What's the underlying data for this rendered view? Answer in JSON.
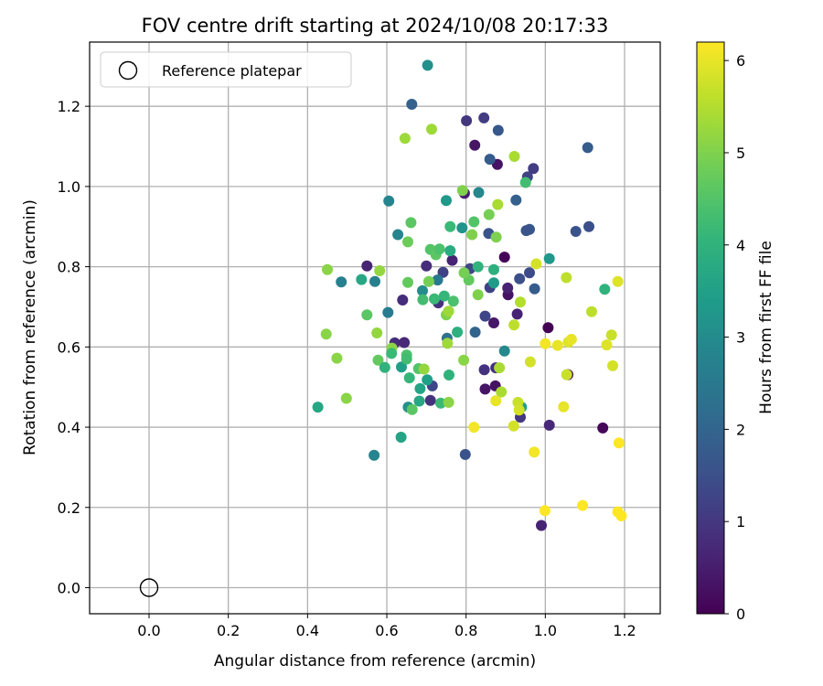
{
  "chart_data": {
    "type": "scatter",
    "title": "FOV centre drift starting at 2024/10/08 20:17:33",
    "xlabel": "Angular distance from reference (arcmin)",
    "ylabel": "Rotation from reference (arcmin)",
    "xlim": [
      -0.15,
      1.29
    ],
    "ylim": [
      -0.065,
      1.36
    ],
    "xticks": [
      0.0,
      0.2,
      0.4,
      0.6,
      0.8,
      1.0,
      1.2
    ],
    "xtick_labels": [
      "0.0",
      "0.2",
      "0.4",
      "0.6",
      "0.8",
      "1.0",
      "1.2"
    ],
    "yticks": [
      0.0,
      0.2,
      0.4,
      0.6,
      0.8,
      1.0,
      1.2
    ],
    "ytick_labels": [
      "0.0",
      "0.2",
      "0.4",
      "0.6",
      "0.8",
      "1.0",
      "1.2"
    ],
    "grid": true,
    "legend": {
      "placement": "upper-left",
      "label": "Reference platepar"
    },
    "reference_point": {
      "x": 0.0,
      "y": 0.0
    },
    "colorbar": {
      "label": "Hours from first FF file",
      "colormap": "viridis",
      "range": [
        0,
        6.2
      ],
      "ticks": [
        0,
        1,
        2,
        3,
        4,
        5,
        6
      ],
      "tick_labels": [
        "0",
        "1",
        "2",
        "3",
        "4",
        "5",
        "6"
      ]
    },
    "points": [
      [
        1.007,
        0.648,
        0.0
      ],
      [
        0.897,
        0.824,
        0.05
      ],
      [
        1.145,
        0.398,
        0.1
      ],
      [
        1.057,
        0.531,
        0.05
      ],
      [
        0.879,
        1.055,
        0.3
      ],
      [
        0.822,
        1.103,
        0.35
      ],
      [
        0.906,
        0.73,
        0.3
      ],
      [
        0.87,
        0.66,
        0.4
      ],
      [
        0.874,
        0.503,
        0.3
      ],
      [
        0.848,
        0.495,
        0.35
      ],
      [
        0.99,
        0.155,
        0.6
      ],
      [
        1.01,
        0.405,
        0.7
      ],
      [
        0.929,
        0.682,
        0.6
      ],
      [
        0.796,
        0.983,
        0.5
      ],
      [
        0.765,
        0.816,
        0.6
      ],
      [
        0.905,
        0.747,
        0.6
      ],
      [
        0.62,
        0.61,
        0.8
      ],
      [
        0.644,
        0.611,
        0.7
      ],
      [
        0.55,
        0.802,
        0.6
      ],
      [
        0.64,
        0.717,
        0.8
      ],
      [
        0.73,
        0.71,
        0.9
      ],
      [
        0.7,
        0.802,
        0.8
      ],
      [
        0.71,
        0.467,
        0.9
      ],
      [
        0.846,
        0.543,
        0.9
      ],
      [
        0.875,
        0.548,
        0.8
      ],
      [
        0.937,
        0.425,
        1.0
      ],
      [
        0.845,
        1.171,
        1.1
      ],
      [
        0.801,
        1.164,
        1.0
      ],
      [
        0.97,
        1.045,
        1.1
      ],
      [
        0.955,
        1.024,
        1.2
      ],
      [
        0.86,
        0.748,
        1.2
      ],
      [
        0.81,
        0.795,
        1.3
      ],
      [
        0.715,
        0.503,
        1.3
      ],
      [
        0.848,
        0.677,
        1.3
      ],
      [
        0.96,
        0.785,
        1.4
      ],
      [
        0.935,
        0.77,
        1.5
      ],
      [
        0.742,
        0.786,
        1.2
      ],
      [
        1.11,
        0.9,
        1.5
      ],
      [
        1.077,
        0.888,
        1.6
      ],
      [
        0.96,
        0.893,
        1.7
      ],
      [
        0.952,
        0.89,
        1.6
      ],
      [
        0.857,
        0.883,
        1.6
      ],
      [
        0.798,
        0.332,
        1.6
      ],
      [
        0.881,
        1.14,
        1.7
      ],
      [
        0.86,
        1.068,
        1.8
      ],
      [
        1.107,
        1.097,
        1.8
      ],
      [
        0.926,
        0.966,
        1.9
      ],
      [
        0.973,
        0.745,
        1.8
      ],
      [
        0.663,
        1.205,
        1.9
      ],
      [
        0.823,
        0.637,
        2.0
      ],
      [
        0.752,
        0.622,
        2.3
      ],
      [
        0.728,
        0.767,
        2.5
      ],
      [
        0.603,
        0.686,
        2.6
      ],
      [
        0.485,
        0.762,
        2.7
      ],
      [
        0.57,
        0.763,
        2.7
      ],
      [
        0.568,
        0.33,
        2.8
      ],
      [
        0.628,
        0.88,
        2.8
      ],
      [
        0.605,
        0.964,
        2.8
      ],
      [
        0.832,
        0.985,
        2.9
      ],
      [
        0.897,
        0.59,
        2.9
      ],
      [
        0.69,
        0.74,
        3.0
      ],
      [
        0.654,
        0.45,
        3.1
      ],
      [
        0.703,
        1.302,
        3.1
      ],
      [
        0.75,
        0.965,
        3.3
      ],
      [
        0.79,
        0.897,
        3.2
      ],
      [
        0.702,
        0.518,
        3.5
      ],
      [
        1.01,
        0.82,
        3.3
      ],
      [
        0.87,
        0.76,
        3.4
      ],
      [
        0.94,
        0.45,
        3.5
      ],
      [
        0.637,
        0.55,
        3.5
      ],
      [
        0.684,
        0.496,
        3.6
      ],
      [
        0.536,
        0.768,
        3.7
      ],
      [
        0.426,
        0.45,
        3.7
      ],
      [
        0.636,
        0.375,
        3.6
      ],
      [
        0.682,
        0.465,
        3.7
      ],
      [
        0.76,
        0.84,
        3.8
      ],
      [
        0.778,
        0.637,
        3.9
      ],
      [
        0.87,
        0.793,
        3.9
      ],
      [
        1.15,
        0.744,
        4.0
      ],
      [
        0.83,
        0.8,
        4.0
      ],
      [
        0.757,
        0.53,
        4.0
      ],
      [
        0.736,
        0.46,
        4.2
      ],
      [
        0.76,
        0.9,
        4.2
      ],
      [
        0.95,
        1.01,
        4.3
      ],
      [
        0.72,
        0.72,
        4.2
      ],
      [
        0.68,
        0.546,
        4.5
      ],
      [
        0.65,
        0.58,
        4.4
      ],
      [
        0.71,
        0.843,
        4.5
      ],
      [
        0.82,
        0.912,
        4.5
      ],
      [
        0.724,
        0.83,
        4.6
      ],
      [
        0.661,
        0.91,
        4.6
      ],
      [
        0.55,
        0.68,
        4.6
      ],
      [
        0.664,
        0.444,
        4.6
      ],
      [
        0.578,
        0.567,
        4.7
      ],
      [
        0.653,
        0.761,
        4.7
      ],
      [
        0.653,
        0.862,
        4.8
      ],
      [
        0.807,
        0.767,
        4.7
      ],
      [
        0.795,
        0.785,
        4.9
      ],
      [
        0.706,
        0.763,
        4.9
      ],
      [
        0.858,
        0.93,
        4.9
      ],
      [
        0.876,
        0.874,
        5.0
      ],
      [
        0.815,
        0.88,
        5.0
      ],
      [
        0.791,
        0.99,
        5.0
      ],
      [
        0.83,
        0.73,
        5.0
      ],
      [
        0.75,
        0.68,
        5.0
      ],
      [
        0.613,
        0.597,
        5.1
      ],
      [
        0.45,
        0.793,
        5.1
      ],
      [
        0.447,
        0.632,
        5.1
      ],
      [
        0.474,
        0.572,
        5.1
      ],
      [
        0.498,
        0.472,
        5.1
      ],
      [
        0.575,
        0.635,
        5.2
      ],
      [
        0.582,
        0.79,
        5.2
      ],
      [
        0.646,
        1.12,
        5.3
      ],
      [
        0.713,
        1.143,
        5.3
      ],
      [
        0.756,
        0.462,
        5.1
      ],
      [
        0.794,
        0.567,
        5.1
      ],
      [
        0.884,
        0.548,
        5.4
      ],
      [
        0.922,
        1.075,
        5.4
      ],
      [
        0.88,
        0.955,
        5.4
      ],
      [
        0.937,
        0.712,
        5.5
      ],
      [
        0.756,
        0.689,
        5.3
      ],
      [
        0.753,
        0.609,
        5.3
      ],
      [
        0.694,
        0.545,
        5.2
      ],
      [
        0.889,
        0.488,
        5.4
      ],
      [
        0.92,
        0.403,
        5.8
      ],
      [
        0.921,
        0.655,
        5.6
      ],
      [
        0.931,
        0.462,
        5.7
      ],
      [
        0.934,
        0.443,
        5.8
      ],
      [
        0.962,
        0.563,
        5.8
      ],
      [
        0.977,
        0.807,
        5.8
      ],
      [
        1.053,
        0.773,
        5.6
      ],
      [
        1.054,
        0.531,
        5.7
      ],
      [
        1.117,
        0.688,
        5.6
      ],
      [
        1.155,
        0.605,
        5.9
      ],
      [
        1.167,
        0.63,
        5.7
      ],
      [
        1.17,
        0.553,
        5.8
      ],
      [
        1.183,
        0.763,
        5.9
      ],
      [
        1.058,
        0.612,
        5.9
      ],
      [
        1.066,
        0.619,
        6.0
      ],
      [
        1.046,
        0.451,
        6.0
      ],
      [
        1.031,
        0.604,
        6.0
      ],
      [
        1.0,
        0.608,
        6.1
      ],
      [
        0.972,
        0.338,
        6.1
      ],
      [
        0.999,
        0.192,
        6.2
      ],
      [
        1.094,
        0.205,
        6.2
      ],
      [
        1.183,
        0.189,
        6.2
      ],
      [
        1.192,
        0.179,
        6.2
      ],
      [
        1.186,
        0.361,
        6.2
      ],
      [
        0.82,
        0.4,
        6.1
      ],
      [
        0.875,
        0.466,
        6.0
      ],
      [
        0.768,
        0.714,
        4.4
      ],
      [
        0.733,
        0.844,
        4.4
      ],
      [
        0.745,
        0.727,
        4.1
      ],
      [
        0.691,
        0.718,
        4.3
      ],
      [
        0.612,
        0.584,
        4.2
      ],
      [
        0.65,
        0.57,
        4.3
      ],
      [
        0.657,
        0.523,
        4.1
      ],
      [
        0.595,
        0.549,
        4.0
      ]
    ]
  }
}
